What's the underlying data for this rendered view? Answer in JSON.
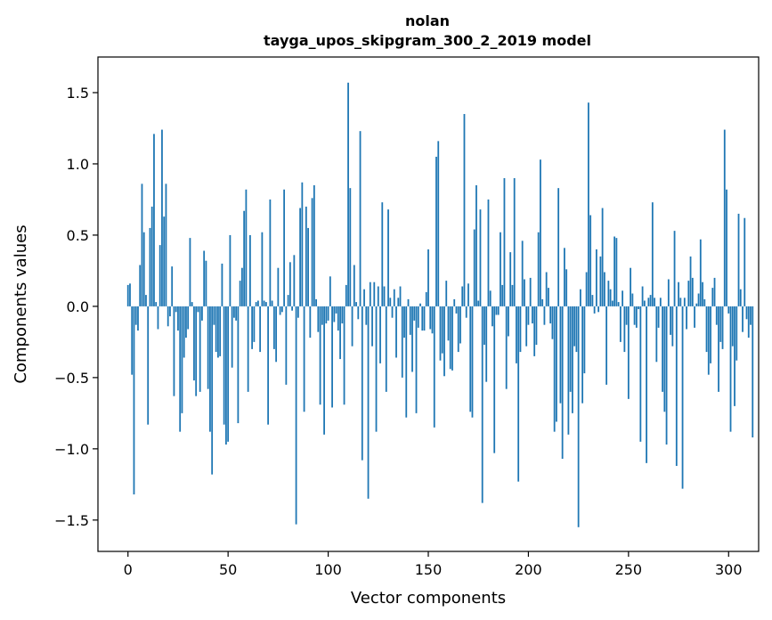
{
  "chart_data": {
    "type": "bar",
    "title": "nolan",
    "subtitle": "tayga_upos_skipgram_300_2_2019 model",
    "xlabel": "Vector components",
    "ylabel": "Components values",
    "xlim": [
      -15,
      315
    ],
    "ylim": [
      -1.72,
      1.75
    ],
    "xticks": [
      0,
      50,
      100,
      150,
      200,
      250,
      300
    ],
    "xtick_labels": [
      "0",
      "50",
      "100",
      "150",
      "200",
      "250",
      "300"
    ],
    "yticks": [
      -1.5,
      -1.0,
      -0.5,
      0.0,
      0.5,
      1.0,
      1.5
    ],
    "ytick_labels": [
      "−1.5",
      "−1.0",
      "−0.5",
      "0.0",
      "0.5",
      "1.0",
      "1.5"
    ],
    "bar_color": "#1f77b4",
    "grid": false,
    "values": [
      0.15,
      0.16,
      -0.48,
      -1.32,
      -0.13,
      -0.17,
      0.29,
      0.86,
      0.52,
      0.08,
      -0.83,
      0.55,
      0.7,
      1.21,
      0.03,
      -0.16,
      0.43,
      1.24,
      0.63,
      0.86,
      -0.14,
      -0.07,
      0.28,
      -0.63,
      -0.04,
      -0.17,
      -0.88,
      -0.75,
      -0.36,
      -0.22,
      -0.16,
      0.48,
      0.03,
      -0.52,
      -0.63,
      -0.04,
      -0.6,
      -0.1,
      0.39,
      0.32,
      -0.58,
      -0.88,
      -1.18,
      -0.13,
      -0.32,
      -0.36,
      -0.35,
      0.3,
      -0.83,
      -0.97,
      -0.95,
      0.5,
      -0.43,
      -0.08,
      -0.1,
      -0.82,
      0.18,
      0.27,
      0.67,
      0.82,
      -0.6,
      0.5,
      -0.3,
      -0.25,
      0.03,
      0.04,
      -0.32,
      0.52,
      0.04,
      0.03,
      -0.83,
      0.75,
      0.04,
      -0.3,
      -0.39,
      0.27,
      -0.06,
      -0.04,
      0.82,
      -0.55,
      0.08,
      0.31,
      -0.03,
      0.36,
      -1.53,
      -0.08,
      0.69,
      0.87,
      -0.74,
      0.7,
      0.55,
      -0.22,
      0.76,
      0.85,
      0.05,
      -0.18,
      -0.69,
      -0.13,
      -0.9,
      -0.12,
      -0.1,
      0.21,
      -0.71,
      -0.11,
      -0.05,
      -0.17,
      -0.37,
      -0.12,
      -0.69,
      0.15,
      1.57,
      0.83,
      -0.28,
      0.29,
      0.03,
      -0.09,
      1.23,
      -1.08,
      0.12,
      -0.13,
      -1.35,
      0.17,
      -0.28,
      0.17,
      -0.88,
      0.14,
      -0.4,
      0.73,
      0.14,
      -0.6,
      0.68,
      0.06,
      -0.08,
      0.12,
      -0.36,
      0.06,
      0.14,
      -0.5,
      -0.22,
      -0.78,
      0.05,
      -0.2,
      -0.46,
      -0.1,
      -0.75,
      -0.15,
      0.02,
      -0.17,
      -0.17,
      0.1,
      0.4,
      -0.16,
      -0.19,
      -0.85,
      1.05,
      1.16,
      -0.38,
      -0.33,
      -0.49,
      0.18,
      -0.24,
      -0.44,
      -0.45,
      0.05,
      -0.05,
      -0.32,
      -0.26,
      0.14,
      1.35,
      -0.08,
      0.16,
      -0.74,
      -0.78,
      0.54,
      0.85,
      0.04,
      0.68,
      -1.38,
      -0.27,
      -0.53,
      0.75,
      0.11,
      -0.14,
      -1.03,
      -0.06,
      -0.06,
      0.52,
      0.15,
      0.9,
      -0.58,
      -0.21,
      0.38,
      0.15,
      0.9,
      -0.4,
      -1.23,
      -0.32,
      0.46,
      0.19,
      -0.28,
      -0.13,
      0.2,
      -0.12,
      -0.35,
      -0.27,
      0.52,
      1.03,
      0.05,
      -0.13,
      0.24,
      0.13,
      -0.12,
      -0.23,
      -0.88,
      -0.81,
      0.83,
      -0.68,
      -1.07,
      0.41,
      0.26,
      -0.9,
      -0.6,
      -0.75,
      -0.28,
      -0.32,
      -1.55,
      0.12,
      -0.68,
      -0.47,
      0.24,
      1.43,
      0.64,
      0.08,
      -0.05,
      0.4,
      -0.04,
      0.35,
      0.69,
      0.24,
      -0.55,
      0.18,
      0.12,
      0.04,
      0.49,
      0.48,
      0.03,
      -0.25,
      0.11,
      -0.32,
      -0.13,
      -0.65,
      0.27,
      0.09,
      -0.13,
      -0.15,
      -0.02,
      -0.95,
      0.14,
      0.04,
      -1.1,
      0.06,
      0.08,
      0.73,
      0.06,
      -0.39,
      -0.15,
      0.06,
      -0.6,
      -0.74,
      -0.97,
      0.19,
      -0.2,
      -0.28,
      0.53,
      -1.12,
      0.17,
      0.06,
      -1.28,
      0.06,
      -0.16,
      0.18,
      0.35,
      0.2,
      -0.15,
      0.02,
      0.09,
      0.47,
      0.17,
      0.05,
      -0.32,
      -0.48,
      -0.4,
      0.13,
      0.2,
      -0.13,
      -0.6,
      -0.25,
      -0.3,
      1.24,
      0.82,
      -0.05,
      -0.88,
      -0.28,
      -0.7,
      -0.38,
      0.65,
      0.12,
      -0.18,
      0.62,
      -0.09,
      -0.22,
      -0.13,
      -0.92
    ]
  }
}
